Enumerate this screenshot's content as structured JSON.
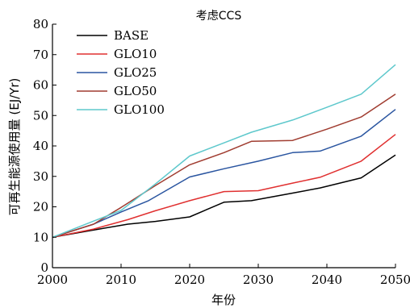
{
  "chart_data": {
    "type": "line",
    "title": "考虑CCS",
    "xlabel": "年份",
    "ylabel": "可再生能源使用量 (EJ/Yr)",
    "xlim": [
      2000,
      2050
    ],
    "ylim": [
      0,
      80
    ],
    "xticks": [
      2000,
      2010,
      2020,
      2030,
      2040,
      2050
    ],
    "yticks": [
      0,
      10,
      20,
      30,
      40,
      50,
      60,
      70,
      80
    ],
    "grid": false,
    "legend_position": "top-left",
    "series": [
      {
        "name": "BASE",
        "color": "#000000",
        "x": [
          2000,
          2005,
          2011,
          2015,
          2020,
          2025,
          2029,
          2035,
          2039,
          2045,
          2050
        ],
        "values": [
          10.0,
          12.0,
          14.3,
          15.2,
          16.7,
          21.5,
          22.0,
          24.5,
          26.2,
          29.5,
          37.0
        ]
      },
      {
        "name": "GLO10",
        "color": "#e03030",
        "x": [
          2000,
          2006,
          2011,
          2015,
          2020,
          2025,
          2030,
          2035,
          2039,
          2045,
          2050
        ],
        "values": [
          10.0,
          12.7,
          15.8,
          18.7,
          22.0,
          25.0,
          25.3,
          27.8,
          29.7,
          35.0,
          43.8
        ]
      },
      {
        "name": "GLO25",
        "color": "#2a55a0",
        "x": [
          2000,
          2006,
          2010,
          2014,
          2020,
          2025,
          2030,
          2035,
          2039,
          2045,
          2050
        ],
        "values": [
          10.0,
          14.3,
          18.3,
          22.0,
          29.8,
          32.5,
          35.0,
          37.8,
          38.3,
          43.2,
          52.0
        ]
      },
      {
        "name": "GLO50",
        "color": "#a03c30",
        "x": [
          2000,
          2006,
          2010,
          2015,
          2020,
          2025,
          2029,
          2035,
          2040,
          2045,
          2050
        ],
        "values": [
          10.0,
          14.3,
          19.8,
          27.0,
          33.8,
          37.8,
          41.5,
          41.8,
          45.5,
          49.5,
          57.0
        ]
      },
      {
        "name": "GLO100",
        "color": "#5ec8cc",
        "x": [
          2000,
          2006,
          2010,
          2015,
          2020,
          2025,
          2029,
          2035,
          2040,
          2045,
          2050
        ],
        "values": [
          10.0,
          15.3,
          18.8,
          27.5,
          36.7,
          41.0,
          44.5,
          48.5,
          52.7,
          57.0,
          66.7
        ]
      }
    ]
  }
}
